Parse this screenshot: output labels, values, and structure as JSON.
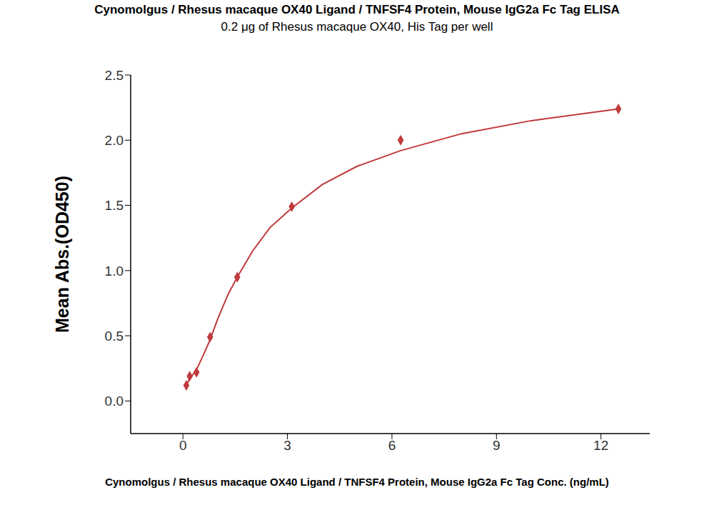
{
  "chart_data": {
    "type": "scatter",
    "title": "Cynomolgus / Rhesus macaque OX40 Ligand / TNFSF4 Protein, Mouse IgG2a Fc Tag ELISA",
    "subtitle": "0.2 μg of Rhesus macaque OX40, His Tag per well",
    "x_label": "Cynomolgus / Rhesus macaque OX40 Ligand / TNFSF4 Protein, Mouse IgG2a Fc Tag Conc. (ng/mL)",
    "y_label": "Mean Abs.(OD450)",
    "x": [
      0.098,
      0.195,
      0.39,
      0.78,
      1.56,
      3.125,
      6.25,
      12.5
    ],
    "values": [
      0.12,
      0.19,
      0.22,
      0.49,
      0.95,
      1.49,
      2.0,
      2.24
    ],
    "color": "#c0393b",
    "marker": "diamond",
    "curve": {
      "x": [
        0.098,
        0.195,
        0.39,
        0.6,
        0.78,
        1.0,
        1.3,
        1.56,
        2.0,
        2.5,
        3.125,
        4.0,
        5.0,
        6.25,
        8.0,
        10.0,
        12.5
      ],
      "values": [
        0.12,
        0.17,
        0.24,
        0.36,
        0.47,
        0.63,
        0.82,
        0.95,
        1.15,
        1.33,
        1.48,
        1.66,
        1.8,
        1.92,
        2.05,
        2.15,
        2.24
      ]
    },
    "xlim": [
      -1.5,
      13.4
    ],
    "ylim": [
      -0.25,
      2.5
    ],
    "xticks": [
      0,
      3,
      6,
      9,
      12
    ],
    "yticks": [
      {
        "value": 0,
        "label": "0.0"
      },
      0.5,
      {
        "value": 1,
        "label": "1.0"
      },
      1.5,
      {
        "value": 2,
        "label": "2.0"
      },
      2.5
    ],
    "grid": false
  }
}
